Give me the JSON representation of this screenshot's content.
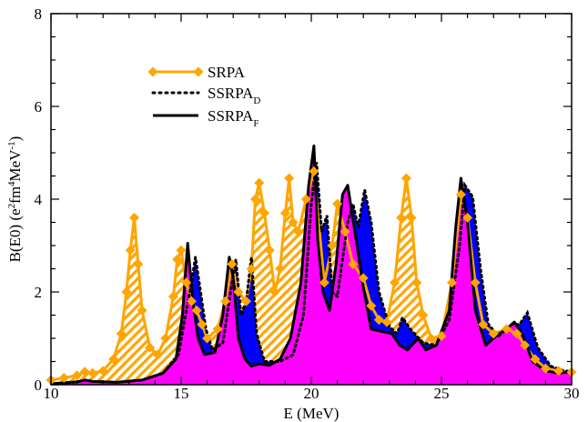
{
  "chart_data": {
    "type": "line",
    "xlabel": "E (MeV)",
    "ylabel_parts": [
      "B(E0) (e",
      "2",
      "fm",
      "4",
      "MeV",
      "-1",
      ")"
    ],
    "xlim": [
      10,
      30
    ],
    "ylim": [
      0,
      8
    ],
    "x_ticks": [
      "10",
      "15",
      "20",
      "25",
      "30"
    ],
    "y_ticks": [
      "0",
      "2",
      "4",
      "6",
      "8"
    ],
    "x_minor_step": 1,
    "y_minor_step": 0.5,
    "grid": false,
    "legend_position": "upper-left",
    "series": [
      {
        "name": "SRPA",
        "color": "#ffa500",
        "marker": "diamond",
        "fill": "orange-hatch",
        "x": [
          10.0,
          10.5,
          11.0,
          11.3,
          11.6,
          12.0,
          12.4,
          12.7,
          12.9,
          13.05,
          13.2,
          13.35,
          13.5,
          13.8,
          14.1,
          14.4,
          14.7,
          14.85,
          15.0,
          15.2,
          15.4,
          15.6,
          15.8,
          16.0,
          16.4,
          16.7,
          16.95,
          17.2,
          17.5,
          17.7,
          17.85,
          18.0,
          18.2,
          18.4,
          18.6,
          18.8,
          19.0,
          19.15,
          19.3,
          19.5,
          19.8,
          20.1,
          20.5,
          20.8,
          21.0,
          21.3,
          21.6,
          22.0,
          22.3,
          22.6,
          22.9,
          23.2,
          23.45,
          23.65,
          23.85,
          24.05,
          24.3,
          24.6,
          25.0,
          25.4,
          25.75,
          26.0,
          26.3,
          26.6,
          27.0,
          27.5,
          27.9,
          28.2,
          28.6,
          29.0,
          29.5,
          30.0
        ],
        "y": [
          0.1,
          0.15,
          0.2,
          0.28,
          0.25,
          0.3,
          0.55,
          1.1,
          2.0,
          2.9,
          3.6,
          2.6,
          1.6,
          0.8,
          0.65,
          1.0,
          1.9,
          2.7,
          2.9,
          2.2,
          1.8,
          1.6,
          1.3,
          1.0,
          1.2,
          1.8,
          2.6,
          2.0,
          1.8,
          2.5,
          4.0,
          4.35,
          3.7,
          2.9,
          2.0,
          2.5,
          3.7,
          4.45,
          3.5,
          3.3,
          4.0,
          4.6,
          2.2,
          3.0,
          3.9,
          3.3,
          2.6,
          2.3,
          1.7,
          1.4,
          1.35,
          2.2,
          3.6,
          4.45,
          3.6,
          2.2,
          1.5,
          1.0,
          1.05,
          2.2,
          4.1,
          3.6,
          2.2,
          1.3,
          1.1,
          1.2,
          1.1,
          0.85,
          0.55,
          0.35,
          0.3,
          0.27
        ]
      },
      {
        "name": "SSRPA",
        "name_sub": "D",
        "color": "#000000",
        "style": "dotted",
        "fill": "#0000ff",
        "x": [
          10.0,
          11.0,
          11.3,
          11.6,
          12.5,
          13.5,
          14.3,
          14.9,
          15.2,
          15.4,
          15.55,
          15.75,
          15.95,
          16.2,
          16.6,
          16.9,
          17.1,
          17.3,
          17.5,
          17.7,
          17.9,
          18.2,
          18.5,
          18.8,
          19.3,
          19.7,
          20.0,
          20.2,
          20.4,
          20.6,
          20.8,
          21.0,
          21.4,
          21.6,
          21.8,
          22.05,
          22.3,
          22.6,
          23.0,
          23.3,
          23.5,
          23.8,
          24.3,
          24.8,
          25.3,
          25.7,
          25.9,
          26.2,
          26.5,
          26.8,
          27.2,
          27.7,
          28.0,
          28.3,
          28.7,
          29.2,
          29.7,
          30.0
        ],
        "y": [
          0.02,
          0.06,
          0.1,
          0.07,
          0.05,
          0.1,
          0.25,
          0.65,
          1.6,
          2.2,
          2.75,
          2.0,
          1.2,
          0.75,
          0.9,
          2.0,
          2.7,
          1.5,
          1.8,
          2.75,
          1.1,
          0.5,
          0.5,
          0.5,
          0.65,
          1.5,
          3.9,
          4.8,
          3.3,
          3.65,
          2.0,
          1.9,
          3.5,
          3.9,
          3.4,
          4.2,
          3.5,
          2.0,
          1.25,
          1.1,
          1.45,
          1.2,
          0.9,
          0.85,
          1.4,
          3.0,
          4.3,
          4.05,
          2.5,
          1.3,
          1.05,
          1.3,
          1.3,
          1.55,
          0.8,
          0.4,
          0.3,
          0.28
        ]
      },
      {
        "name": "SSRPA",
        "name_sub": "F",
        "color": "#000000",
        "style": "solid",
        "fill": "#ff00ff",
        "x": [
          10.0,
          11.0,
          11.3,
          11.6,
          12.5,
          13.5,
          14.3,
          14.8,
          15.05,
          15.25,
          15.45,
          15.65,
          15.9,
          16.3,
          16.6,
          16.85,
          17.0,
          17.2,
          17.45,
          17.7,
          18.0,
          18.4,
          18.8,
          19.2,
          19.6,
          19.9,
          20.1,
          20.25,
          20.45,
          20.7,
          20.95,
          21.2,
          21.4,
          21.7,
          22.0,
          22.3,
          22.7,
          23.1,
          23.4,
          23.7,
          24.1,
          24.4,
          24.8,
          25.3,
          25.55,
          25.75,
          26.0,
          26.3,
          26.7,
          27.1,
          27.5,
          27.8,
          28.1,
          28.5,
          29.0,
          29.5,
          30.0
        ],
        "y": [
          0.02,
          0.06,
          0.1,
          0.07,
          0.05,
          0.1,
          0.25,
          0.55,
          1.5,
          3.05,
          1.8,
          1.0,
          0.65,
          0.7,
          1.5,
          2.75,
          2.3,
          1.0,
          0.55,
          0.4,
          0.45,
          0.42,
          0.55,
          1.0,
          2.2,
          4.3,
          5.15,
          3.1,
          2.0,
          1.6,
          2.6,
          4.1,
          4.3,
          3.2,
          2.1,
          1.2,
          1.15,
          1.1,
          0.85,
          0.75,
          1.0,
          0.75,
          0.85,
          1.6,
          3.4,
          4.45,
          3.5,
          1.6,
          0.85,
          1.05,
          1.2,
          1.35,
          1.1,
          0.5,
          0.3,
          0.25,
          0.28
        ]
      }
    ]
  }
}
